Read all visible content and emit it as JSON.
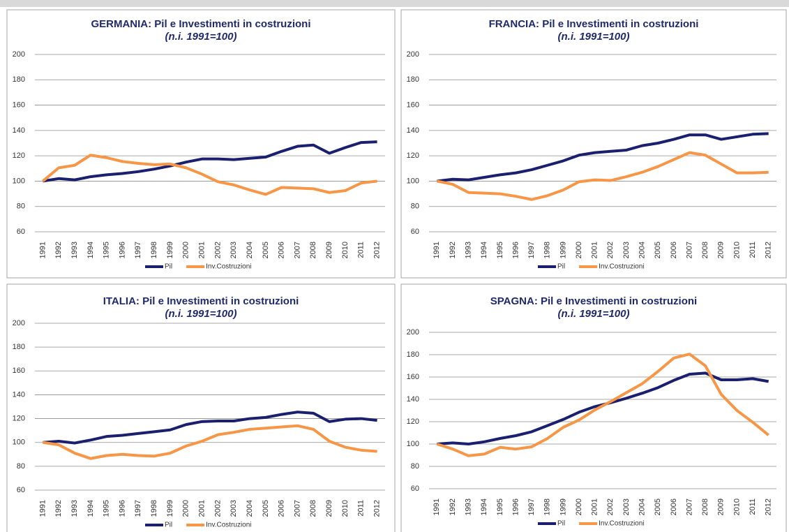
{
  "chart_data": [
    {
      "type": "line",
      "title": "GERMANIA: Pil e Investimenti in costruzioni",
      "subtitle": "(n.i. 1991=100)",
      "categories": [
        "1991",
        "1992",
        "1993",
        "1994",
        "1995",
        "1996",
        "1997",
        "1998",
        "1999",
        "2000",
        "2001",
        "2002",
        "2003",
        "2004",
        "2005",
        "2006",
        "2007",
        "2008",
        "2009",
        "2010",
        "2011",
        "2012"
      ],
      "series": [
        {
          "name": "Pil",
          "color": "#1a1f6e",
          "values": [
            100,
            102,
            101,
            103.5,
            105,
            106,
            107.5,
            109.5,
            112,
            115,
            117.5,
            117.5,
            117,
            118,
            119,
            123.5,
            127.5,
            128.5,
            122,
            126.5,
            130.5,
            131
          ]
        },
        {
          "name": "Inv.Costruzioni",
          "color": "#f79646",
          "values": [
            100,
            110.5,
            112.5,
            120.5,
            118.5,
            115.5,
            114,
            113,
            113.5,
            110.5,
            105.5,
            99.5,
            97,
            93,
            89.5,
            95,
            94.5,
            94,
            91,
            92.5,
            98.5,
            100
          ]
        }
      ],
      "ylim": [
        60,
        200
      ],
      "yticks": [
        60,
        80,
        100,
        120,
        140,
        160,
        180,
        200
      ],
      "grid": true,
      "legend": "bottom"
    },
    {
      "type": "line",
      "title": "FRANCIA: Pil e Investimenti in costruzioni",
      "subtitle": "(n.i. 1991=100)",
      "categories": [
        "1991",
        "1992",
        "1993",
        "1994",
        "1995",
        "1996",
        "1997",
        "1998",
        "1999",
        "2000",
        "2001",
        "2002",
        "2003",
        "2004",
        "2005",
        "2006",
        "2007",
        "2008",
        "2009",
        "2010",
        "2011",
        "2012"
      ],
      "series": [
        {
          "name": "Pil",
          "color": "#1a1f6e",
          "values": [
            100,
            101.5,
            101,
            103,
            105,
            106.5,
            109,
            112.5,
            116,
            120.5,
            122.5,
            123.5,
            124.5,
            128,
            130,
            133,
            136.5,
            136.5,
            133,
            135,
            137,
            137.5
          ]
        },
        {
          "name": "Inv.Costruzioni",
          "color": "#f79646",
          "values": [
            100,
            97.5,
            91,
            90.5,
            90,
            88,
            85.5,
            88.5,
            93,
            99.5,
            101,
            100.5,
            103.5,
            107,
            111.5,
            117,
            122.5,
            120.5,
            113.5,
            106.5,
            106.5,
            107
          ]
        }
      ],
      "ylim": [
        60,
        200
      ],
      "yticks": [
        60,
        80,
        100,
        120,
        140,
        160,
        180,
        200
      ],
      "grid": true,
      "legend": "bottom"
    },
    {
      "type": "line",
      "title": "ITALIA: Pil e Investimenti in costruzioni",
      "subtitle": "(n.i. 1991=100)",
      "categories": [
        "1991",
        "1992",
        "1993",
        "1994",
        "1995",
        "1996",
        "1997",
        "1998",
        "1999",
        "2000",
        "2001",
        "2002",
        "2003",
        "2004",
        "2005",
        "2006",
        "2007",
        "2008",
        "2009",
        "2010",
        "2011",
        "2012"
      ],
      "series": [
        {
          "name": "Pil",
          "color": "#1a1f6e",
          "values": [
            100,
            101,
            99.5,
            102,
            105,
            106,
            107.5,
            109,
            110.5,
            115,
            117.5,
            118,
            118,
            120,
            121,
            123.5,
            125.5,
            124.5,
            117.5,
            119.5,
            120,
            118.5
          ]
        },
        {
          "name": "Inv.Costruzioni",
          "color": "#f79646",
          "values": [
            100,
            98,
            91,
            86.5,
            89,
            90,
            89,
            88.5,
            91,
            97,
            101,
            106.5,
            108.5,
            111,
            112,
            113,
            114,
            111,
            101,
            96,
            93.5,
            92.5
          ]
        }
      ],
      "ylim": [
        60,
        200
      ],
      "yticks": [
        60,
        80,
        100,
        120,
        140,
        160,
        180,
        200
      ],
      "grid": true,
      "legend": "bottom"
    },
    {
      "type": "line",
      "title": "SPAGNA: Pil e Investimenti in costruzioni",
      "subtitle": "(n.i. 1991=100)",
      "categories": [
        "1991",
        "1992",
        "1993",
        "1994",
        "1995",
        "1996",
        "1997",
        "1998",
        "1999",
        "2000",
        "2001",
        "2002",
        "2003",
        "2004",
        "2005",
        "2006",
        "2007",
        "2008",
        "2009",
        "2010",
        "2011",
        "2012"
      ],
      "series": [
        {
          "name": "Pil",
          "color": "#1a1f6e",
          "values": [
            100,
            101,
            100,
            102,
            105,
            107.5,
            111,
            116.5,
            122,
            128.5,
            133.5,
            137,
            141,
            145.5,
            150.5,
            157,
            162.5,
            163.5,
            157.5,
            157.5,
            158.5,
            156
          ]
        },
        {
          "name": "Inv.Costruzioni",
          "color": "#f79646",
          "values": [
            100,
            95.5,
            89.5,
            91,
            97,
            95.5,
            97.5,
            105,
            115,
            121.5,
            130.5,
            138,
            146,
            154,
            165,
            177,
            180.5,
            170,
            144.5,
            130,
            119.5,
            108
          ]
        }
      ],
      "ylim": [
        60,
        200
      ],
      "yticks": [
        60,
        80,
        100,
        120,
        140,
        160,
        180,
        200
      ],
      "grid": true,
      "legend": "bottom"
    }
  ]
}
